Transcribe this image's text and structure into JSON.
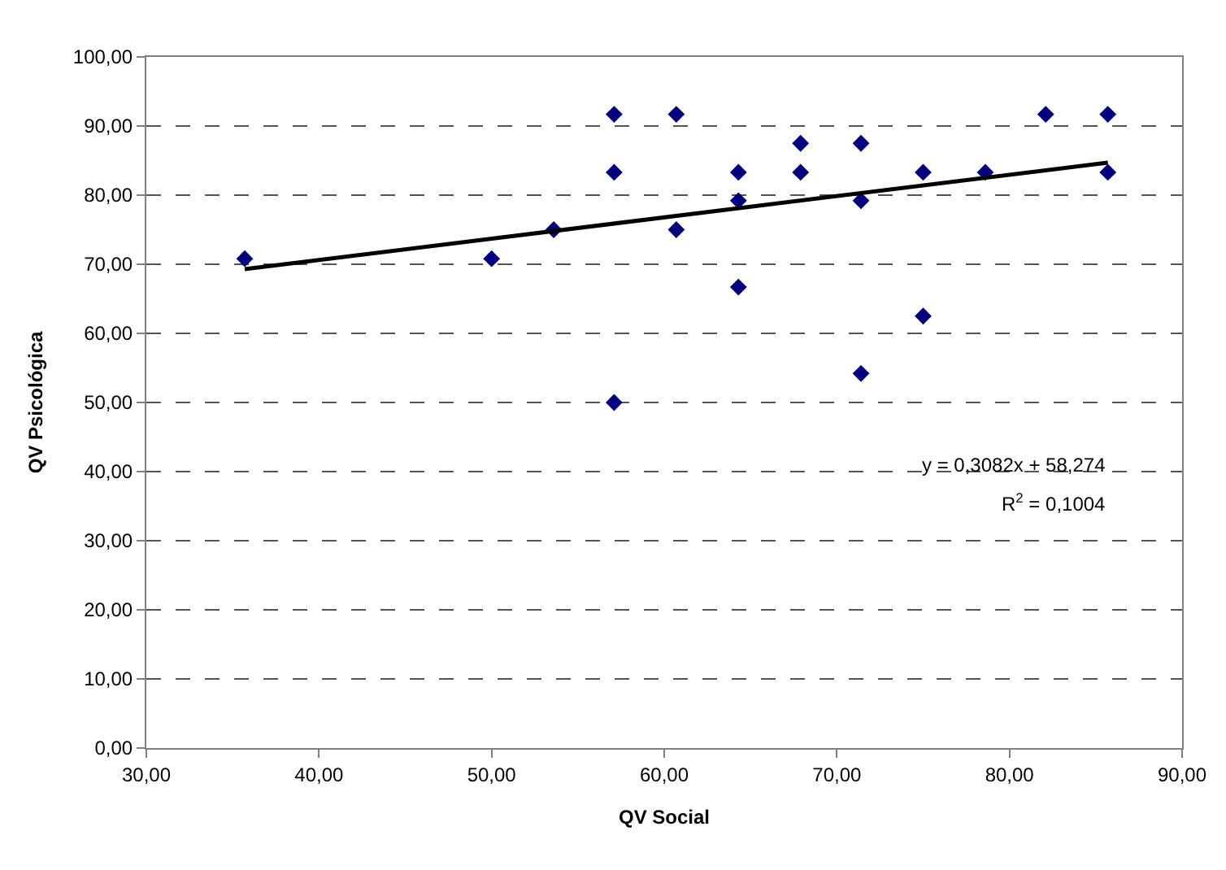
{
  "chart_data": {
    "type": "scatter",
    "xlabel": "QV Social",
    "ylabel": "QV Psicológica",
    "xlim": [
      30,
      90
    ],
    "xticks": [
      {
        "value": 30,
        "label": "30,00"
      },
      {
        "value": 40,
        "label": "40,00"
      },
      {
        "value": 50,
        "label": "50,00"
      },
      {
        "value": 60,
        "label": "60,00"
      },
      {
        "value": 70,
        "label": "70,00"
      },
      {
        "value": 80,
        "label": "80,00"
      },
      {
        "value": 90,
        "label": "90,00"
      }
    ],
    "ylim": [
      0,
      100
    ],
    "yticks": [
      {
        "value": 0,
        "label": "0,00"
      },
      {
        "value": 10,
        "label": "10,00"
      },
      {
        "value": 20,
        "label": "20,00"
      },
      {
        "value": 30,
        "label": "30,00"
      },
      {
        "value": 40,
        "label": "40,00"
      },
      {
        "value": 50,
        "label": "50,00"
      },
      {
        "value": 60,
        "label": "60,00"
      },
      {
        "value": 70,
        "label": "70,00"
      },
      {
        "value": 80,
        "label": "80,00"
      },
      {
        "value": 90,
        "label": "90,00"
      },
      {
        "value": 100,
        "label": "100,00"
      }
    ],
    "grid": "y",
    "marker": "diamond",
    "legend": false,
    "series": [
      {
        "color": "#000080",
        "x": [
          35.7,
          50,
          53.6,
          57.1,
          57.1,
          57.1,
          60.7,
          60.7,
          64.3,
          64.3,
          64.3,
          67.9,
          67.9,
          71.4,
          71.4,
          71.4,
          75,
          75,
          78.6,
          82.1,
          85.7,
          85.7
        ],
        "values": [
          70.8,
          70.8,
          75,
          91.7,
          83.3,
          50,
          91.7,
          75,
          83.3,
          79.2,
          66.7,
          87.5,
          83.3,
          87.5,
          79.2,
          54.2,
          83.3,
          62.5,
          83.3,
          91.7,
          91.7,
          83.3
        ]
      },
      {
        "type": "line",
        "color": "#000000",
        "marker": "none",
        "line_style": "solid",
        "x": [
          35.7,
          85.7
        ],
        "values": [
          69.3,
          84.7
        ]
      }
    ],
    "annotations": [
      "y = 0,3082x + 58,274",
      "R$^{2}$ = 0,1004"
    ]
  }
}
